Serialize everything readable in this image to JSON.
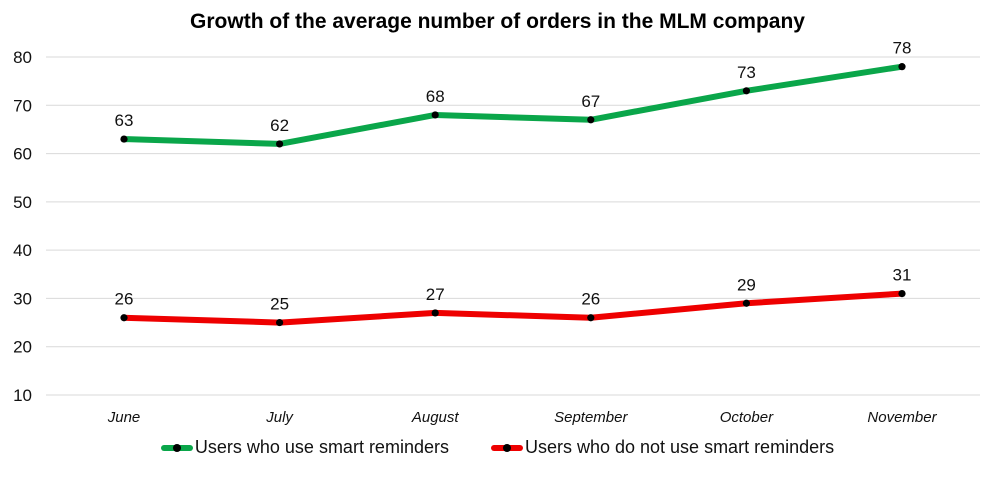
{
  "chart_data": {
    "type": "line",
    "title": "Growth of the average number of orders in the MLM company",
    "xlabel": "",
    "ylabel": "",
    "categories": [
      "June",
      "July",
      "August",
      "September",
      "October",
      "November"
    ],
    "ylim": [
      10,
      80
    ],
    "yticks": [
      10,
      20,
      30,
      40,
      50,
      60,
      70,
      80
    ],
    "grid": true,
    "legend_position": "bottom",
    "series": [
      {
        "name": "Users who use smart reminders",
        "color": "#0aa64a",
        "values": [
          63,
          62,
          68,
          67,
          73,
          78
        ]
      },
      {
        "name": "Users who do not use smart reminders",
        "color": "#ee0000",
        "values": [
          26,
          25,
          27,
          26,
          29,
          31
        ]
      }
    ]
  }
}
